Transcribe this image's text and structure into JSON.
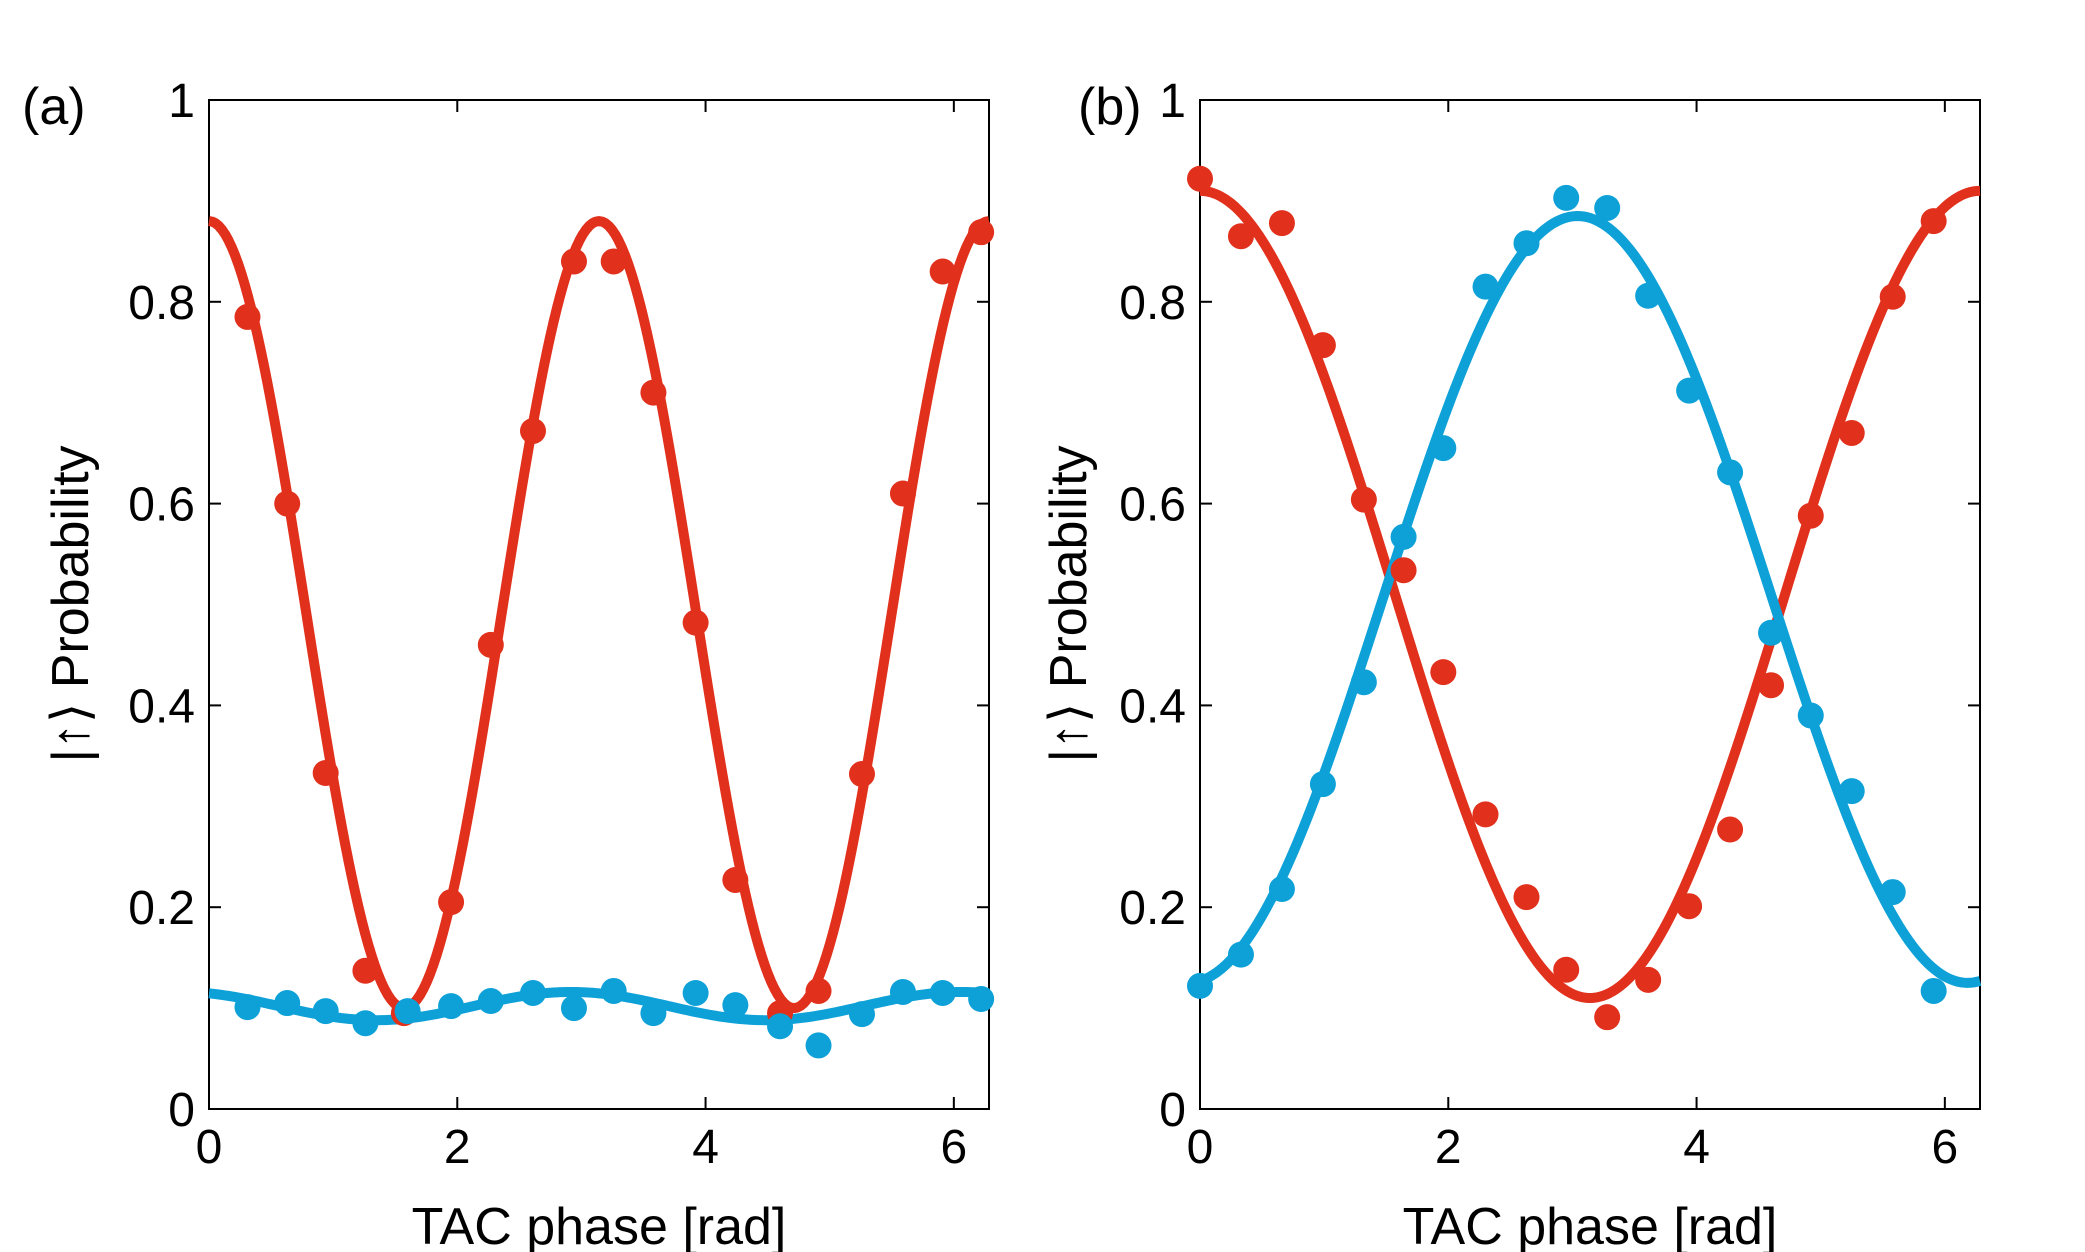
{
  "chart_data": [
    {
      "type": "scatter",
      "panel_label": "(a)",
      "xlabel": "TAC phase [rad]",
      "ylabel": "|↑⟩ Probability",
      "xlim": [
        0,
        6.2832
      ],
      "ylim": [
        0,
        1
      ],
      "xticks": [
        0,
        2,
        4,
        6
      ],
      "xtick_labels": [
        "0",
        "2",
        "4",
        "6"
      ],
      "yticks": [
        0,
        0.2,
        0.4,
        0.6,
        0.8,
        1
      ],
      "ytick_labels": [
        "0",
        "0.2",
        "0.4",
        "0.6",
        "0.8",
        "1"
      ],
      "grid": false,
      "series": [
        {
          "name": "red",
          "color": "#e1301c",
          "points": {
            "x": [
              0.31,
              0.63,
              0.94,
              1.26,
              1.57,
              1.95,
              2.27,
              2.61,
              2.94,
              3.26,
              3.58,
              3.92,
              4.24,
              4.6,
              4.91,
              5.26,
              5.59,
              5.91,
              6.22
            ],
            "y": [
              0.785,
              0.6,
              0.333,
              0.137,
              0.095,
              0.205,
              0.46,
              0.672,
              0.84,
              0.84,
              0.71,
              0.482,
              0.227,
              0.095,
              0.117,
              0.332,
              0.61,
              0.83,
              0.869
            ]
          },
          "fit": {
            "amplitude": 0.39,
            "offset": 0.49,
            "frequency": 2,
            "phase": 0
          }
        },
        {
          "name": "blue",
          "color": "#0da1d8",
          "points": {
            "x": [
              0.31,
              0.63,
              0.94,
              1.26,
              1.6,
              1.95,
              2.27,
              2.61,
              2.94,
              3.26,
              3.58,
              3.92,
              4.24,
              4.6,
              4.91,
              5.26,
              5.59,
              5.91,
              6.22
            ],
            "y": [
              0.101,
              0.105,
              0.097,
              0.085,
              0.097,
              0.102,
              0.107,
              0.115,
              0.1,
              0.117,
              0.095,
              0.115,
              0.103,
              0.082,
              0.063,
              0.094,
              0.116,
              0.115,
              0.109
            ]
          },
          "fit": {
            "amplitude": 0.014,
            "offset": 0.102,
            "frequency": 2,
            "phase": 0.45
          }
        }
      ]
    },
    {
      "type": "scatter",
      "panel_label": "(b)",
      "xlabel": "TAC phase [rad]",
      "ylabel": "|↑⟩ Probability",
      "xlim": [
        0,
        6.2832
      ],
      "ylim": [
        0,
        1
      ],
      "xticks": [
        0,
        2,
        4,
        6
      ],
      "xtick_labels": [
        "0",
        "2",
        "4",
        "6"
      ],
      "yticks": [
        0,
        0.2,
        0.4,
        0.6,
        0.8,
        1
      ],
      "ytick_labels": [
        "0",
        "0.2",
        "0.4",
        "0.6",
        "0.8",
        "1"
      ],
      "grid": false,
      "series": [
        {
          "name": "red",
          "color": "#e1301c",
          "points": {
            "x": [
              0.0,
              0.33,
              0.66,
              0.99,
              1.32,
              1.64,
              1.96,
              2.3,
              2.63,
              2.95,
              3.28,
              3.61,
              3.94,
              4.27,
              4.6,
              4.92,
              5.25,
              5.58,
              5.91
            ],
            "y": [
              0.922,
              0.865,
              0.878,
              0.757,
              0.604,
              0.534,
              0.433,
              0.292,
              0.21,
              0.138,
              0.091,
              0.128,
              0.201,
              0.277,
              0.42,
              0.588,
              0.67,
              0.805,
              0.88
            ]
          },
          "fit": {
            "amplitude": 0.4,
            "offset": 0.51,
            "frequency": 1,
            "phase": 0
          }
        },
        {
          "name": "blue",
          "color": "#0da1d8",
          "points": {
            "x": [
              0.0,
              0.33,
              0.66,
              0.99,
              1.32,
              1.64,
              1.96,
              2.3,
              2.63,
              2.95,
              3.28,
              3.61,
              3.94,
              4.27,
              4.6,
              4.92,
              5.25,
              5.58,
              5.91
            ],
            "y": [
              0.122,
              0.153,
              0.218,
              0.322,
              0.423,
              0.567,
              0.655,
              0.815,
              0.858,
              0.903,
              0.893,
              0.806,
              0.712,
              0.631,
              0.472,
              0.39,
              0.315,
              0.215,
              0.117
            ]
          },
          "fit": {
            "amplitude": -0.38,
            "offset": 0.505,
            "frequency": 1,
            "phase": 0.1
          }
        }
      ]
    }
  ]
}
